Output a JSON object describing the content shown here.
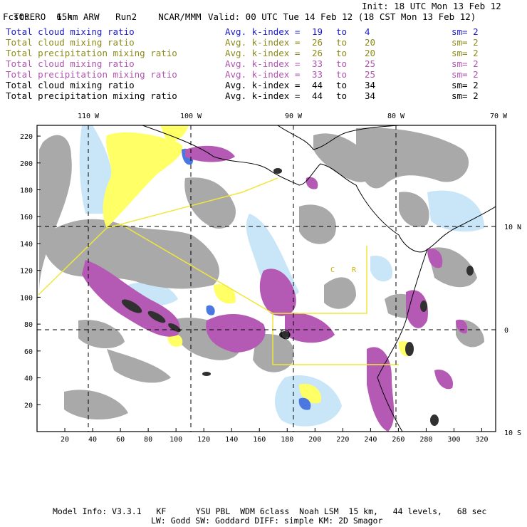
{
  "header": {
    "model": "TORERO",
    "resolution": "15km ARW",
    "run": "Run2",
    "org": "NCAR/MMM",
    "init": "Init: 18 UTC Mon 13 Feb 12",
    "fcst_label": "Fcst:",
    "fcst_value": "6 h",
    "valid": "Valid: 00 UTC Tue 14 Feb 12 (18 CST Mon 13 Feb 12)"
  },
  "legend": [
    {
      "field": "Total cloud mixing ratio",
      "kindex": "Avg. k-index =",
      "k1": "19",
      "to": "to",
      "k2": "4",
      "sm": "sm= 2",
      "color": "#1a1acc"
    },
    {
      "field": "Total cloud mixing ratio",
      "kindex": "Avg. k-index =",
      "k1": "26",
      "to": "to",
      "k2": "20",
      "sm": "sm= 2",
      "color": "#8c8a1a"
    },
    {
      "field": "Total precipitation mixing ratio",
      "kindex": "Avg. k-index =",
      "k1": "26",
      "to": "to",
      "k2": "20",
      "sm": "sm= 2",
      "color": "#8c8a1a"
    },
    {
      "field": "Total cloud mixing ratio",
      "kindex": "Avg. k-index =",
      "k1": "33",
      "to": "to",
      "k2": "25",
      "sm": "sm= 2",
      "color": "#b054b0"
    },
    {
      "field": "Total precipitation mixing ratio",
      "kindex": "Avg. k-index =",
      "k1": "33",
      "to": "to",
      "k2": "25",
      "sm": "sm= 2",
      "color": "#b054b0"
    },
    {
      "field": "Total cloud mixing ratio",
      "kindex": "Avg. k-index =",
      "k1": "44",
      "to": "to",
      "k2": "34",
      "sm": "sm= 2",
      "color": "#000000"
    },
    {
      "field": "Total precipitation mixing ratio",
      "kindex": "Avg. k-index =",
      "k1": "44",
      "to": "to",
      "k2": "34",
      "sm": "sm= 2",
      "color": "#000000"
    }
  ],
  "axes": {
    "lon_labels": [
      "110 W",
      "100 W",
      "90 W",
      "80 W",
      "70 W"
    ],
    "lat_labels": [
      "10 N",
      "0",
      "10 S"
    ],
    "x_ticks": [
      "20",
      "40",
      "60",
      "80",
      "100",
      "120",
      "140",
      "160",
      "180",
      "200",
      "220",
      "240",
      "260",
      "280",
      "300",
      "320"
    ],
    "y_ticks": [
      "220",
      "200",
      "180",
      "160",
      "140",
      "120",
      "100",
      "80",
      "60",
      "40",
      "20"
    ],
    "x_grid_range": [
      0,
      330
    ],
    "y_grid_range": [
      0,
      228
    ]
  },
  "map_labels": {
    "c": "C",
    "r": "R"
  },
  "colors": {
    "gray": "#a9a9a9",
    "light_blue": "#c8e6f8",
    "blue": "#4a78e0",
    "yellow": "#ffff66",
    "purple": "#b45ab4",
    "dark": "#303030",
    "domain_line": "#f0e63c"
  },
  "footer": {
    "line1": "Model Info: V3.3.1   KF      YSU PBL  WDM 6class  Noah LSM  15 km,   44 levels,   68 sec",
    "line2": "LW: Godd SW: Goddard DIFF: simple KM: 2D Smagor"
  }
}
